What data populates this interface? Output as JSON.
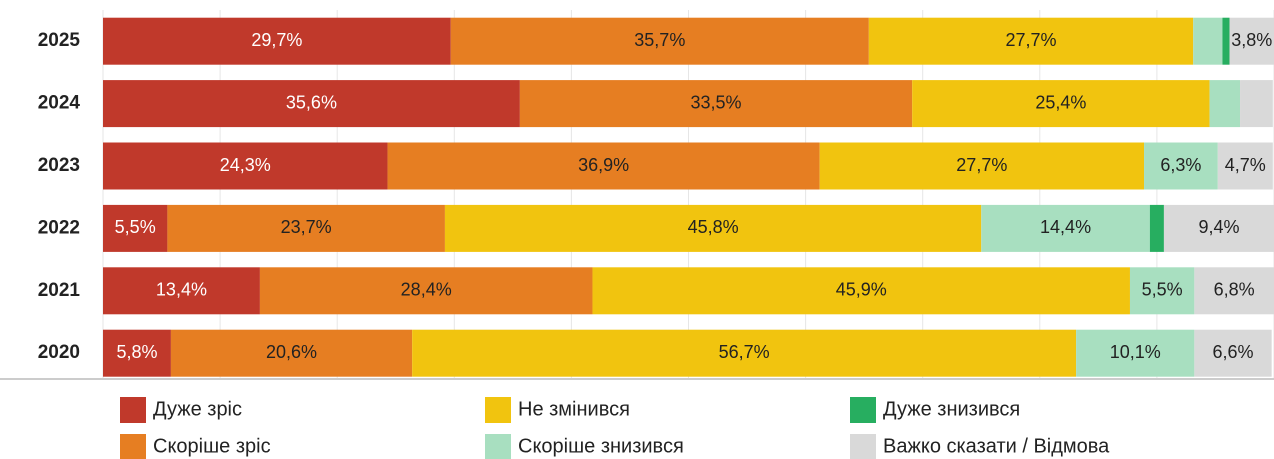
{
  "chart_data": {
    "type": "stacked-barh",
    "categories": [
      "2025",
      "2024",
      "2023",
      "2022",
      "2021",
      "2020"
    ],
    "xlim": [
      0,
      100
    ],
    "xticks": [
      0,
      10,
      20,
      30,
      40,
      50,
      60,
      70,
      80,
      90,
      100
    ],
    "grid": true,
    "series": [
      {
        "name": "Дуже зріс",
        "color": "#c0392b",
        "values": [
          29.7,
          35.6,
          24.3,
          5.5,
          13.4,
          5.8
        ],
        "value_labels": [
          "29,7%",
          "35,6%",
          "24,3%",
          "5,5%",
          "13,4%",
          "5,8%"
        ]
      },
      {
        "name": "Скоріше зріс",
        "color": "#e67e22",
        "values": [
          35.7,
          33.5,
          36.9,
          23.7,
          28.4,
          20.6
        ],
        "value_labels": [
          "35,7%",
          "33,5%",
          "36,9%",
          "23,7%",
          "28,4%",
          "20,6%"
        ]
      },
      {
        "name": "Не змінився",
        "color": "#f1c40f",
        "values": [
          27.7,
          25.4,
          27.7,
          45.8,
          45.9,
          56.7
        ],
        "value_labels": [
          "27,7%",
          "25,4%",
          "27,7%",
          "45,8%",
          "45,9%",
          "56,7%"
        ]
      },
      {
        "name": "Скоріше знизився",
        "color": "#a8dfc0",
        "values": [
          2.5,
          2.6,
          6.3,
          14.4,
          5.5,
          10.1
        ],
        "value_labels": [
          null,
          null,
          "6,3%",
          "14,4%",
          "5,5%",
          "10,1%"
        ]
      },
      {
        "name": "Дуже знизився",
        "color": "#27ae60",
        "values": [
          0.6,
          0,
          0,
          1.2,
          0,
          0
        ],
        "value_labels": [
          null,
          null,
          null,
          null,
          null,
          null
        ]
      },
      {
        "name": "Важко сказати / Відмова",
        "color": "#d9d9d9",
        "values": [
          3.8,
          2.8,
          4.7,
          9.4,
          6.8,
          6.6
        ],
        "value_labels": [
          "3,8%",
          null,
          "4,7%",
          "9,4%",
          "6,8%",
          "6,6%"
        ]
      }
    ]
  }
}
